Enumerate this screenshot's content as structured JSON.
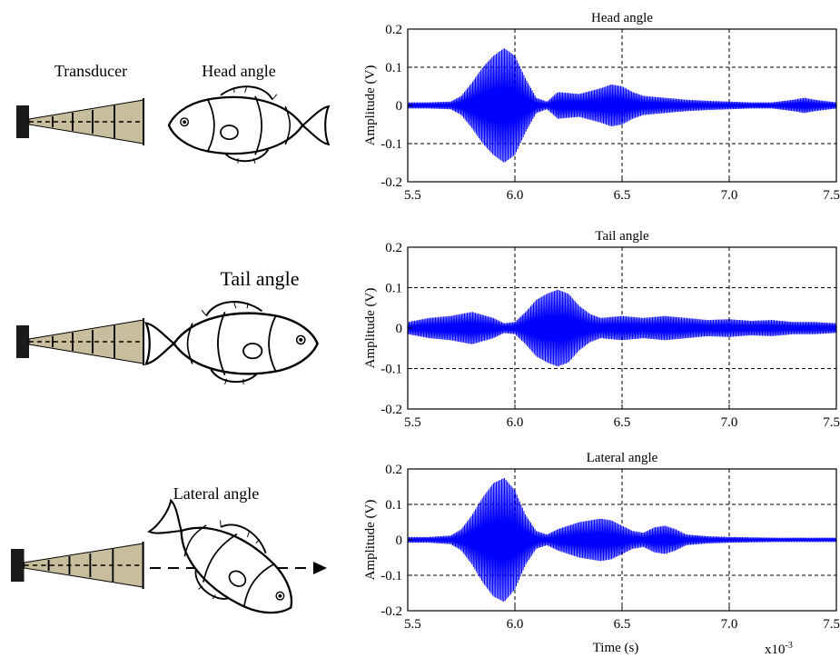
{
  "illustrations": {
    "transducer_label": "Transducer",
    "head_label": "Head angle",
    "tail_label": "Tail angle",
    "lateral_label": "Lateral angle"
  },
  "colors": {
    "signal": "#0000ff",
    "beam_fill": "#c8bd9c",
    "transducer": "#1a1a1a",
    "grid": "#000000"
  },
  "axis_common": {
    "ylabel": "Amplitude (V)",
    "xlabel": "Time (s)",
    "x_multiplier": "x10",
    "x_multiplier_exp": "-3",
    "xticks": [
      "5.5",
      "6.0",
      "6.5",
      "7.0",
      "7.5"
    ],
    "yticks": [
      "0.2",
      "0.1",
      "0",
      "-0.1",
      "-0.2"
    ]
  },
  "chart_data": [
    {
      "type": "line",
      "title": "Head angle",
      "ylabel": "Amplitude (V)",
      "xlim": [
        5.5,
        7.5
      ],
      "ylim": [
        -0.2,
        0.2
      ],
      "grid": true,
      "envelope": {
        "x": [
          5.5,
          5.6,
          5.7,
          5.75,
          5.8,
          5.85,
          5.9,
          5.95,
          6.0,
          6.05,
          6.1,
          6.15,
          6.2,
          6.3,
          6.4,
          6.45,
          6.5,
          6.55,
          6.6,
          6.7,
          6.8,
          6.9,
          7.0,
          7.1,
          7.2,
          7.3,
          7.35,
          7.4,
          7.5
        ],
        "amplitude": [
          0.008,
          0.008,
          0.01,
          0.025,
          0.06,
          0.1,
          0.13,
          0.15,
          0.13,
          0.07,
          0.02,
          0.01,
          0.035,
          0.03,
          0.045,
          0.055,
          0.05,
          0.035,
          0.025,
          0.02,
          0.015,
          0.012,
          0.01,
          0.008,
          0.008,
          0.015,
          0.02,
          0.015,
          0.008
        ]
      }
    },
    {
      "type": "line",
      "title": "Tail angle",
      "ylabel": "Amplitude (V)",
      "xlim": [
        5.5,
        7.5
      ],
      "ylim": [
        -0.2,
        0.2
      ],
      "grid": true,
      "envelope": {
        "x": [
          5.5,
          5.6,
          5.7,
          5.8,
          5.9,
          5.95,
          6.0,
          6.05,
          6.1,
          6.15,
          6.2,
          6.25,
          6.3,
          6.35,
          6.4,
          6.5,
          6.6,
          6.7,
          6.8,
          6.9,
          7.0,
          7.1,
          7.2,
          7.3,
          7.4,
          7.5
        ],
        "amplitude": [
          0.015,
          0.025,
          0.03,
          0.04,
          0.025,
          0.012,
          0.015,
          0.04,
          0.07,
          0.085,
          0.095,
          0.085,
          0.055,
          0.035,
          0.025,
          0.03,
          0.025,
          0.03,
          0.025,
          0.02,
          0.022,
          0.018,
          0.02,
          0.015,
          0.015,
          0.012
        ]
      }
    },
    {
      "type": "line",
      "title": "Lateral angle",
      "ylabel": "Amplitude (V)",
      "xlabel": "Time (s)",
      "xlim": [
        5.5,
        7.5
      ],
      "ylim": [
        -0.2,
        0.2
      ],
      "grid": true,
      "envelope": {
        "x": [
          5.5,
          5.6,
          5.7,
          5.75,
          5.8,
          5.85,
          5.9,
          5.95,
          6.0,
          6.05,
          6.1,
          6.15,
          6.2,
          6.3,
          6.4,
          6.45,
          6.5,
          6.55,
          6.6,
          6.65,
          6.7,
          6.75,
          6.8,
          6.9,
          7.0,
          7.2,
          7.5
        ],
        "amplitude": [
          0.008,
          0.008,
          0.012,
          0.03,
          0.07,
          0.12,
          0.16,
          0.175,
          0.14,
          0.07,
          0.025,
          0.015,
          0.03,
          0.05,
          0.06,
          0.055,
          0.04,
          0.025,
          0.02,
          0.035,
          0.04,
          0.03,
          0.015,
          0.01,
          0.008,
          0.006,
          0.006
        ]
      }
    }
  ]
}
